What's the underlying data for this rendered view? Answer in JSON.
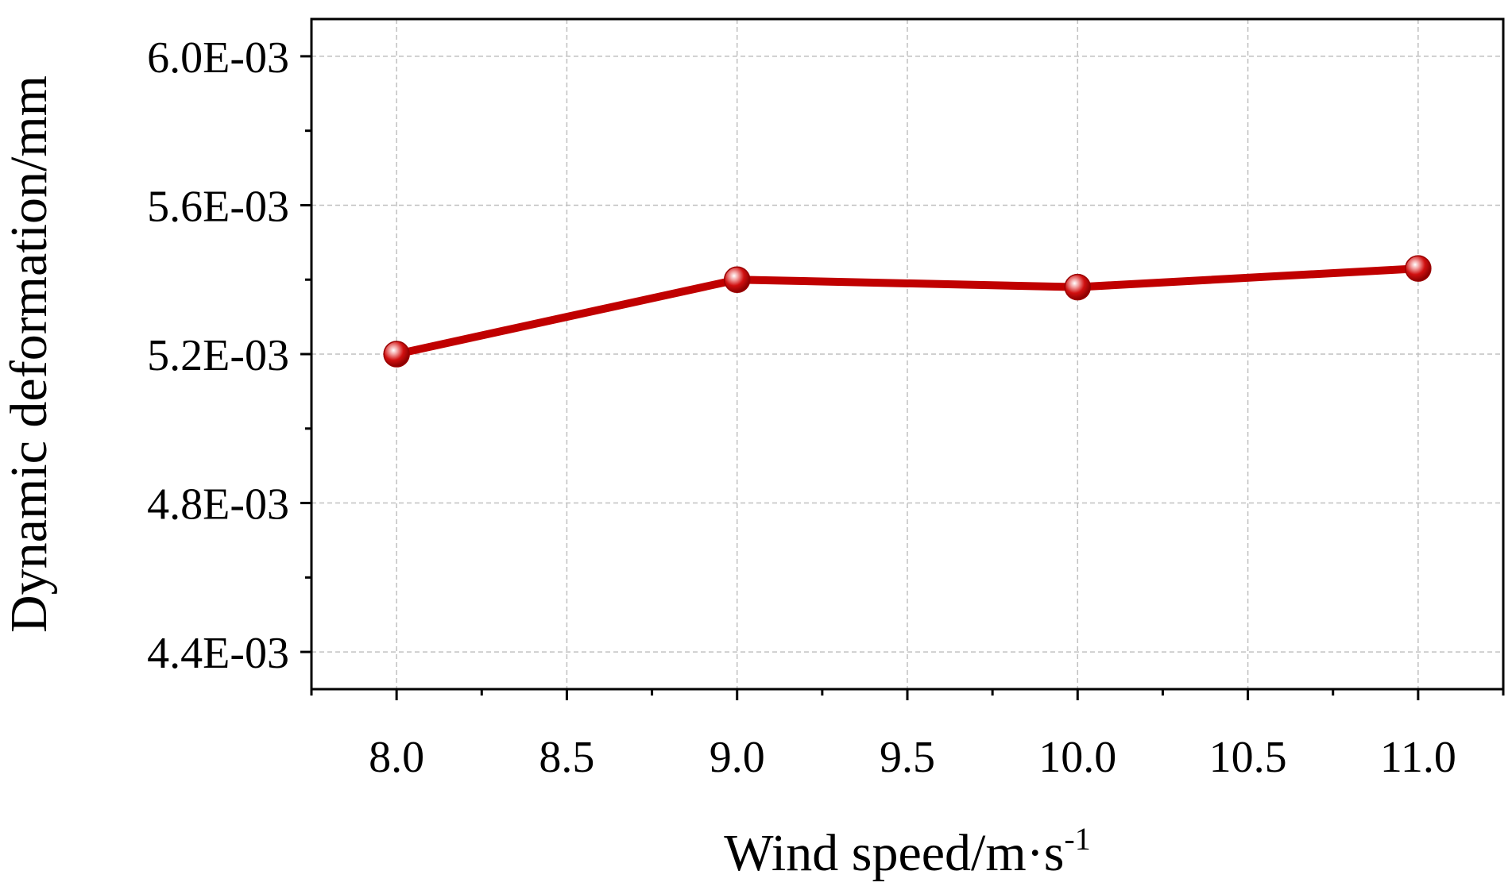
{
  "chart_data": {
    "type": "line",
    "xlabel": "Wind speed/m·s",
    "xlabel_superscript": "-1",
    "ylabel": "Dynamic deformation/mm",
    "xlim": [
      7.75,
      11.25
    ],
    "ylim": [
      0.0043,
      0.0061
    ],
    "x_ticks": [
      8.0,
      8.5,
      9.0,
      9.5,
      10.0,
      10.5,
      11.0
    ],
    "x_tick_labels": [
      "8.0",
      "8.5",
      "9.0",
      "9.5",
      "10.0",
      "10.5",
      "11.0"
    ],
    "y_ticks": [
      0.0044,
      0.0048,
      0.0052,
      0.0056,
      0.006
    ],
    "y_tick_labels": [
      "4.4E-03",
      "4.8E-03",
      "5.2E-03",
      "5.6E-03",
      "6.0E-03"
    ],
    "grid": true,
    "series": [
      {
        "x": [
          8.0,
          9.0,
          10.0,
          11.0
        ],
        "y": [
          0.0052,
          0.0054,
          0.00538,
          0.00543
        ],
        "color": "#c00000"
      }
    ]
  }
}
